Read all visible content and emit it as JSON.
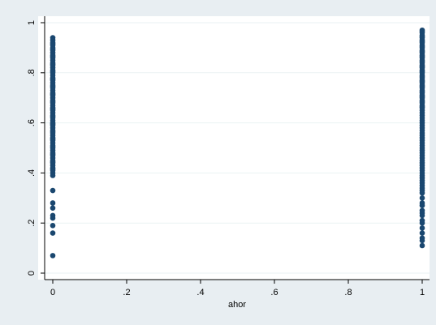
{
  "chart_data": {
    "type": "scatter",
    "title": "",
    "xlabel": "ahor",
    "ylabel": "",
    "xlim": [
      0,
      1
    ],
    "ylim": [
      0,
      1
    ],
    "x_ticks": [
      "0",
      ".2",
      ".4",
      ".6",
      ".8",
      "1"
    ],
    "y_ticks": [
      "0",
      ".2",
      ".4",
      ".6",
      ".8",
      "1"
    ],
    "grid": true,
    "legend": "none",
    "colors": {
      "background": "#e8eef2",
      "plot_background": "#ffffff",
      "marker": "#1a476f",
      "grid": "#eaf2f3"
    },
    "series": [
      {
        "x": [
          0,
          0,
          0,
          0,
          0,
          0,
          0,
          0,
          0,
          0,
          0,
          0,
          0,
          0,
          0,
          0,
          0,
          0,
          0,
          0,
          0,
          0,
          0,
          0,
          0,
          0,
          0,
          0,
          0,
          0,
          0,
          0,
          0,
          0,
          0,
          0,
          0,
          0,
          0,
          0,
          0,
          0,
          0,
          0,
          0,
          0,
          0,
          0,
          0,
          0,
          0,
          0,
          0,
          0,
          0,
          0,
          0,
          0,
          0,
          0,
          0,
          0,
          0,
          0,
          0,
          0,
          0,
          0,
          0,
          0,
          0,
          0,
          0,
          0,
          0,
          0,
          0,
          0,
          0,
          0,
          0,
          0
        ],
        "y": [
          0.94,
          0.93,
          0.92,
          0.91,
          0.9,
          0.89,
          0.88,
          0.87,
          0.86,
          0.85,
          0.84,
          0.83,
          0.82,
          0.81,
          0.8,
          0.79,
          0.78,
          0.77,
          0.76,
          0.75,
          0.74,
          0.73,
          0.72,
          0.71,
          0.7,
          0.69,
          0.68,
          0.67,
          0.66,
          0.65,
          0.64,
          0.63,
          0.62,
          0.61,
          0.6,
          0.59,
          0.58,
          0.57,
          0.56,
          0.55,
          0.54,
          0.53,
          0.52,
          0.51,
          0.5,
          0.49,
          0.48,
          0.47,
          0.46,
          0.45,
          0.44,
          0.43,
          0.42,
          0.41,
          0.4,
          0.39,
          0.33,
          0.28,
          0.26,
          0.23,
          0.22,
          0.19,
          0.16,
          0.07,
          0.915,
          0.895,
          0.865,
          0.835,
          0.805,
          0.775,
          0.745,
          0.715,
          0.685,
          0.655,
          0.625,
          0.595,
          0.565,
          0.535,
          0.505,
          0.475,
          0.445,
          0.415
        ]
      },
      {
        "x": [
          1,
          1,
          1,
          1,
          1,
          1,
          1,
          1,
          1,
          1,
          1,
          1,
          1,
          1,
          1,
          1,
          1,
          1,
          1,
          1,
          1,
          1,
          1,
          1,
          1,
          1,
          1,
          1,
          1,
          1,
          1,
          1,
          1,
          1,
          1,
          1,
          1,
          1,
          1,
          1,
          1,
          1,
          1,
          1,
          1,
          1,
          1,
          1,
          1,
          1,
          1,
          1,
          1,
          1,
          1,
          1,
          1,
          1,
          1,
          1,
          1,
          1,
          1,
          1,
          1,
          1,
          1,
          1,
          1,
          1,
          1,
          1,
          1,
          1,
          1,
          1,
          1,
          1,
          1,
          1,
          1,
          1,
          1,
          1,
          1,
          1,
          1,
          1,
          1,
          1,
          1,
          1,
          1,
          1,
          1
        ],
        "y": [
          0.97,
          0.96,
          0.95,
          0.94,
          0.93,
          0.92,
          0.91,
          0.9,
          0.89,
          0.88,
          0.87,
          0.86,
          0.85,
          0.84,
          0.83,
          0.82,
          0.81,
          0.8,
          0.79,
          0.78,
          0.77,
          0.76,
          0.75,
          0.74,
          0.73,
          0.72,
          0.71,
          0.7,
          0.69,
          0.68,
          0.67,
          0.66,
          0.65,
          0.64,
          0.63,
          0.62,
          0.61,
          0.6,
          0.59,
          0.58,
          0.57,
          0.56,
          0.55,
          0.54,
          0.53,
          0.52,
          0.51,
          0.5,
          0.49,
          0.48,
          0.47,
          0.46,
          0.45,
          0.44,
          0.43,
          0.42,
          0.41,
          0.4,
          0.39,
          0.38,
          0.37,
          0.36,
          0.35,
          0.34,
          0.33,
          0.32,
          0.3,
          0.28,
          0.27,
          0.25,
          0.24,
          0.23,
          0.21,
          0.2,
          0.18,
          0.16,
          0.14,
          0.13,
          0.11,
          0.965,
          0.945,
          0.925,
          0.905,
          0.885,
          0.865,
          0.845,
          0.825,
          0.805,
          0.785,
          0.765,
          0.745,
          0.725,
          0.705,
          0.685,
          0.665
        ]
      }
    ]
  }
}
